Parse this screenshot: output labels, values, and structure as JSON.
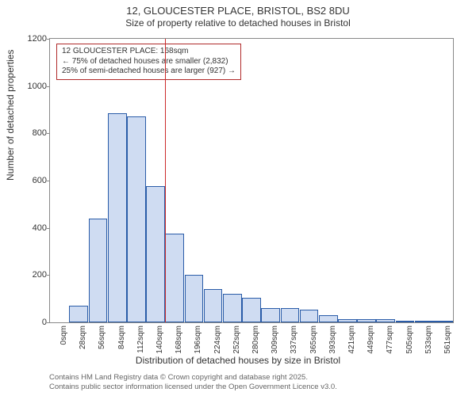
{
  "chart": {
    "title": "12, GLOUCESTER PLACE, BRISTOL, BS2 8DU",
    "subtitle": "Size of property relative to detached houses in Bristol",
    "y_axis_label": "Number of detached properties",
    "x_axis_label": "Distribution of detached houses by size in Bristol",
    "ylim": [
      0,
      1200
    ],
    "ytick_step": 200,
    "bar_fill": "#cfdcf2",
    "bar_border": "#2a5ca8",
    "background_color": "#ffffff",
    "border_color": "#888888",
    "tick_fontsize": 10,
    "label_fontsize": 12,
    "title_fontsize": 13,
    "marker_line_color": "#cc2b2b",
    "marker_x_value": 168,
    "callout": {
      "lines": [
        "12 GLOUCESTER PLACE: 168sqm",
        "← 75% of detached houses are smaller (2,832)",
        "25% of semi-detached houses are larger (927) →"
      ],
      "border_color": "#b02a2a",
      "fontsize": 10
    },
    "categories": [
      "0sqm",
      "28sqm",
      "56sqm",
      "84sqm",
      "112sqm",
      "140sqm",
      "168sqm",
      "196sqm",
      "224sqm",
      "252sqm",
      "280sqm",
      "309sqm",
      "337sqm",
      "365sqm",
      "393sqm",
      "421sqm",
      "449sqm",
      "477sqm",
      "505sqm",
      "533sqm",
      "561sqm"
    ],
    "values": [
      0,
      70,
      440,
      885,
      870,
      575,
      375,
      200,
      140,
      120,
      105,
      60,
      60,
      55,
      30,
      15,
      12,
      15,
      5,
      3,
      2
    ]
  },
  "footer": {
    "line1": "Contains HM Land Registry data © Crown copyright and database right 2025.",
    "line2": "Contains public sector information licensed under the Open Government Licence v3.0."
  }
}
